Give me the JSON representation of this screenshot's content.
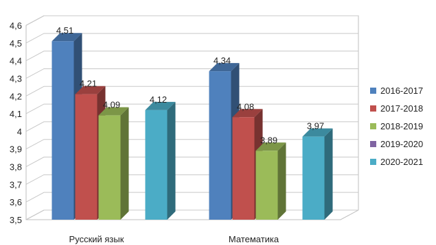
{
  "chart_data": {
    "type": "bar",
    "categories": [
      "Русский язык",
      "Математика"
    ],
    "series": [
      {
        "name": "2016-2017",
        "values": [
          4.51,
          4.34
        ],
        "color": "#4F81BD",
        "labels": [
          "4,51",
          "4,34"
        ]
      },
      {
        "name": "2017-2018",
        "values": [
          4.21,
          4.08
        ],
        "color": "#C0504D",
        "labels": [
          "4,21",
          "4,08"
        ]
      },
      {
        "name": "2018-2019",
        "values": [
          4.09,
          3.89
        ],
        "color": "#9BBB59",
        "labels": [
          "4,09",
          "3,89"
        ]
      },
      {
        "name": "2019-2020",
        "values": [
          null,
          null
        ],
        "color": "#8064A2",
        "labels": [
          "",
          ""
        ]
      },
      {
        "name": "2020-2021",
        "values": [
          4.12,
          3.97
        ],
        "color": "#4BACC6",
        "labels": [
          "4,12",
          "3,97"
        ]
      }
    ],
    "ylim": [
      3.5,
      4.6
    ],
    "yticks": [
      "3,5",
      "3,6",
      "3,7",
      "3,8",
      "3,9",
      "4",
      "4,1",
      "4,2",
      "4,3",
      "4,4",
      "4,5",
      "4,6"
    ],
    "grid": true,
    "legend_position": "right"
  }
}
